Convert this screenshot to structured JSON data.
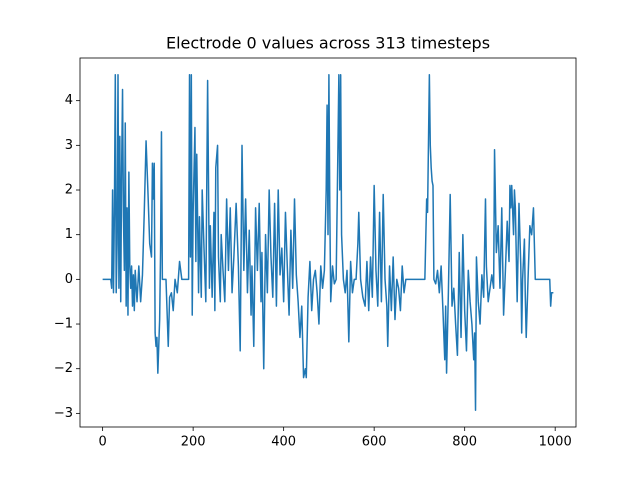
{
  "chart_data": {
    "type": "line",
    "title": "Electrode 0 values across 313 timesteps",
    "x": [
      0,
      10,
      18,
      20,
      22,
      24,
      26,
      28,
      30,
      32,
      34,
      36,
      38,
      40,
      42,
      44,
      46,
      48,
      50,
      52,
      54,
      56,
      58,
      60,
      62,
      64,
      66,
      68,
      70,
      72,
      76,
      80,
      84,
      88,
      92,
      96,
      100,
      104,
      108,
      110,
      112,
      114,
      116,
      118,
      120,
      122,
      124,
      126,
      128,
      130,
      132,
      140,
      145,
      148,
      152,
      156,
      160,
      165,
      170,
      175,
      190,
      192,
      194,
      196,
      198,
      200,
      204,
      206,
      208,
      212,
      214,
      218,
      220,
      224,
      228,
      232,
      236,
      238,
      242,
      246,
      248,
      250,
      254,
      256,
      260,
      262,
      266,
      270,
      274,
      278,
      282,
      286,
      290,
      295,
      300,
      304,
      308,
      312,
      316,
      320,
      324,
      328,
      330,
      334,
      338,
      342,
      346,
      350,
      352,
      356,
      360,
      364,
      368,
      372,
      376,
      380,
      384,
      388,
      392,
      396,
      400,
      404,
      408,
      412,
      416,
      420,
      424,
      428,
      432,
      436,
      440,
      444,
      448,
      450,
      454,
      458,
      462,
      466,
      470,
      474,
      478,
      482,
      486,
      490,
      494,
      496,
      498,
      500,
      502,
      504,
      508,
      512,
      516,
      520,
      522,
      524,
      526,
      528,
      532,
      536,
      540,
      544,
      548,
      552,
      556,
      560,
      564,
      566,
      570,
      575,
      580,
      584,
      588,
      592,
      596,
      600,
      604,
      608,
      612,
      616,
      620,
      624,
      628,
      630,
      634,
      638,
      642,
      646,
      650,
      654,
      658,
      662,
      666,
      670,
      680,
      690,
      700,
      705,
      710,
      712,
      716,
      718,
      722,
      724,
      726,
      728,
      730,
      732,
      736,
      740,
      744,
      748,
      752,
      756,
      758,
      760,
      764,
      768,
      772,
      776,
      780,
      784,
      788,
      792,
      796,
      800,
      804,
      808,
      812,
      816,
      820,
      822,
      824,
      826,
      830,
      834,
      838,
      842,
      846,
      848,
      852,
      856,
      860,
      864,
      866,
      870,
      874,
      878,
      882,
      886,
      890,
      894,
      898,
      900,
      902,
      904,
      908,
      910,
      912,
      916,
      920,
      924,
      926,
      928,
      932,
      934,
      936,
      940,
      944,
      948,
      952,
      954,
      956,
      960,
      968,
      980,
      988,
      990,
      992,
      996
    ],
    "values": [
      0,
      0,
      0,
      -0.2,
      2.0,
      -0.3,
      1.5,
      4.58,
      -0.3,
      0.8,
      4.58,
      -0.2,
      3.2,
      -0.5,
      2.5,
      4.25,
      1.4,
      0.2,
      3.5,
      -0.6,
      1.6,
      -0.8,
      2.4,
      0.3,
      -0.2,
      0.3,
      -0.6,
      0.1,
      -0.7,
      0.2,
      -0.5,
      0.3,
      -0.5,
      0.1,
      1.5,
      3.1,
      2.0,
      0.8,
      0.5,
      2.6,
      1.8,
      2.6,
      -1.2,
      -1.5,
      -1.3,
      -2.1,
      -1.5,
      -0.9,
      0.6,
      3.3,
      0,
      0,
      -1.5,
      -0.4,
      -0.3,
      -0.7,
      0.0,
      -0.3,
      0.4,
      0,
      0,
      4.58,
      0.5,
      4.58,
      -0.8,
      1.5,
      3.4,
      0.4,
      2.8,
      -0.3,
      1.4,
      -0.4,
      2.0,
      0.7,
      -0.5,
      4.45,
      -0.2,
      1.2,
      -0.4,
      1.5,
      -0.7,
      2.5,
      3.0,
      0.5,
      -0.5,
      1.0,
      0.2,
      -0.5,
      1.8,
      0.2,
      1.6,
      -0.3,
      0.5,
      1.7,
      0.3,
      -1.6,
      3.0,
      0.2,
      1.8,
      -0.3,
      1.1,
      -0.8,
      0.3,
      -1.5,
      1.6,
      0.2,
      1.7,
      -0.5,
      0.6,
      -2.0,
      1.0,
      -0.3,
      2.0,
      0.5,
      -0.4,
      1.7,
      -0.6,
      2.0,
      0.1,
      0.7,
      -0.5,
      1.5,
      0.3,
      -0.8,
      1.1,
      -0.2,
      1.8,
      0.1,
      -0.5,
      -1.3,
      -0.6,
      -2.2,
      -2.0,
      -2.2,
      -0.4,
      0.4,
      -0.7,
      0,
      0.2,
      -0.3,
      -1.0,
      0.3,
      -0.2,
      0.2,
      2.0,
      3.9,
      1.0,
      4.58,
      1.6,
      -0.5,
      0.3,
      -0.1,
      0,
      3.0,
      4.58,
      2.0,
      4.58,
      1.0,
      0.0,
      -0.3,
      0.2,
      -1.4,
      0.4,
      -0.3,
      0,
      0,
      0.8,
      1.5,
      0,
      -0.4,
      -0.6,
      0.4,
      -0.7,
      0.5,
      -0.4,
      2.1,
      0.2,
      -0.6,
      1.5,
      -0.5,
      1.9,
      0,
      -0.6,
      -1.5,
      0.3,
      -0.7,
      0.5,
      -0.9,
      0,
      -0.2,
      -0.7,
      0.3,
      -0.3,
      0,
      0,
      0,
      0,
      0,
      0,
      0,
      1.8,
      1.5,
      4.58,
      3.0,
      2.5,
      2.2,
      2.1,
      0,
      -0.1,
      0.2,
      -0.3,
      0.3,
      -0.7,
      -1.8,
      -0.6,
      -2.1,
      -0.3,
      1.9,
      -0.6,
      -0.2,
      -1.0,
      -1.7,
      0.6,
      -1.3,
      1.0,
      -0.7,
      -1.6,
      0.2,
      -0.5,
      -1.0,
      -1.8,
      -1.2,
      -2.93,
      0.5,
      -0.5,
      -1.0,
      0.1,
      -0.4,
      1.8,
      0.3,
      -0.5,
      -0.2,
      0.1,
      -0.2,
      2.9,
      0.6,
      1.2,
      -0.2,
      1.6,
      -0.8,
      0.2,
      1.3,
      0.4,
      2.1,
      1.6,
      2.1,
      1.0,
      2.0,
      1.6,
      -0.5,
      1.7,
      0.3,
      -1.2,
      0.0,
      0.9,
      -0.4,
      -1.3,
      0.0,
      1.2,
      1.0,
      1.6,
      0.8,
      0.0,
      0,
      0,
      0,
      0,
      -0.6,
      -0.3,
      -0.3
    ],
    "color": "#1f77b4",
    "xlim": [
      -50,
      1046
    ],
    "ylim": [
      -3.305,
      4.955
    ],
    "xticks": [
      0,
      200,
      400,
      600,
      800,
      1000
    ],
    "yticks": [
      {
        "value": -3,
        "label": "−3"
      },
      {
        "value": -2,
        "label": "−2"
      },
      {
        "value": -1,
        "label": "−1"
      },
      0,
      1,
      2,
      3,
      4
    ],
    "grid": false
  }
}
